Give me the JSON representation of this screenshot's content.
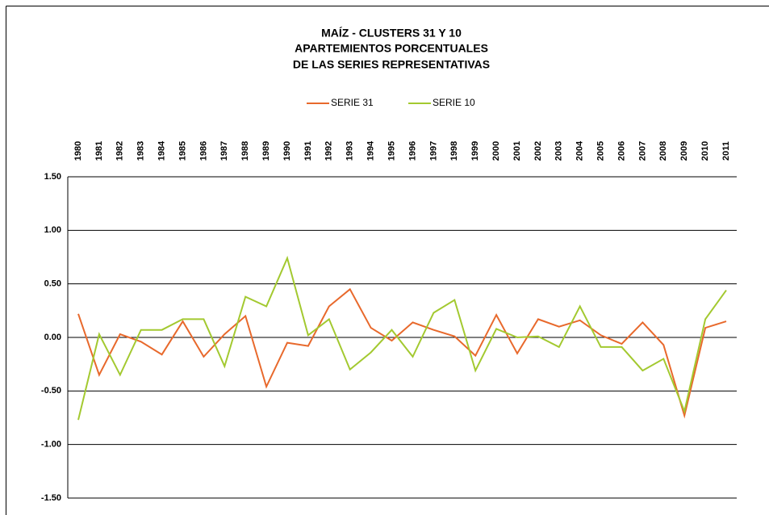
{
  "chart_data": {
    "type": "line",
    "title": [
      "MAÍZ - CLUSTERS 31 Y 10",
      "APARTEMIENTOS PORCENTUALES",
      "DE LAS SERIES REPRESENTATIVAS"
    ],
    "categories": [
      "1980",
      "1981",
      "1982",
      "1983",
      "1984",
      "1985",
      "1986",
      "1987",
      "1988",
      "1989",
      "1990",
      "1991",
      "1992",
      "1993",
      "1994",
      "1995",
      "1996",
      "1997",
      "1998",
      "1999",
      "2000",
      "2001",
      "2002",
      "2003",
      "2004",
      "2005",
      "2006",
      "2007",
      "2008",
      "2009",
      "2010",
      "2011"
    ],
    "series": [
      {
        "name": "SERIE 31",
        "color": "#e8692c",
        "values": [
          0.22,
          -0.35,
          0.03,
          -0.04,
          -0.16,
          0.15,
          -0.18,
          0.03,
          0.2,
          -0.46,
          -0.05,
          -0.08,
          0.29,
          0.45,
          0.09,
          -0.03,
          0.14,
          0.07,
          0.01,
          -0.17,
          0.21,
          -0.15,
          0.17,
          0.1,
          0.16,
          0.02,
          -0.06,
          0.14,
          -0.07,
          -0.73,
          0.09,
          0.15
        ]
      },
      {
        "name": "SERIE 10",
        "color": "#a3c930",
        "values": [
          -0.77,
          0.03,
          -0.35,
          0.07,
          0.07,
          0.17,
          0.17,
          -0.27,
          0.38,
          0.29,
          0.74,
          0.02,
          0.17,
          -0.3,
          -0.14,
          0.07,
          -0.18,
          0.23,
          0.35,
          -0.31,
          0.08,
          0.0,
          0.01,
          -0.09,
          0.29,
          -0.09,
          -0.09,
          -0.31,
          -0.2,
          -0.69,
          0.17,
          0.44
        ]
      }
    ],
    "ylim": [
      -1.5,
      1.5
    ],
    "yticks": [
      {
        "value": -1.5,
        "label": "-1.50"
      },
      {
        "value": -1.0,
        "label": "-1.00"
      },
      {
        "value": -0.5,
        "label": "-0.50"
      },
      {
        "value": 0,
        "label": "0.00"
      },
      {
        "value": 0.5,
        "label": "0.50"
      },
      {
        "value": 1.0,
        "label": "1.00"
      },
      {
        "value": 1.5,
        "label": "1.50"
      }
    ],
    "grid": true,
    "legend": "top"
  }
}
